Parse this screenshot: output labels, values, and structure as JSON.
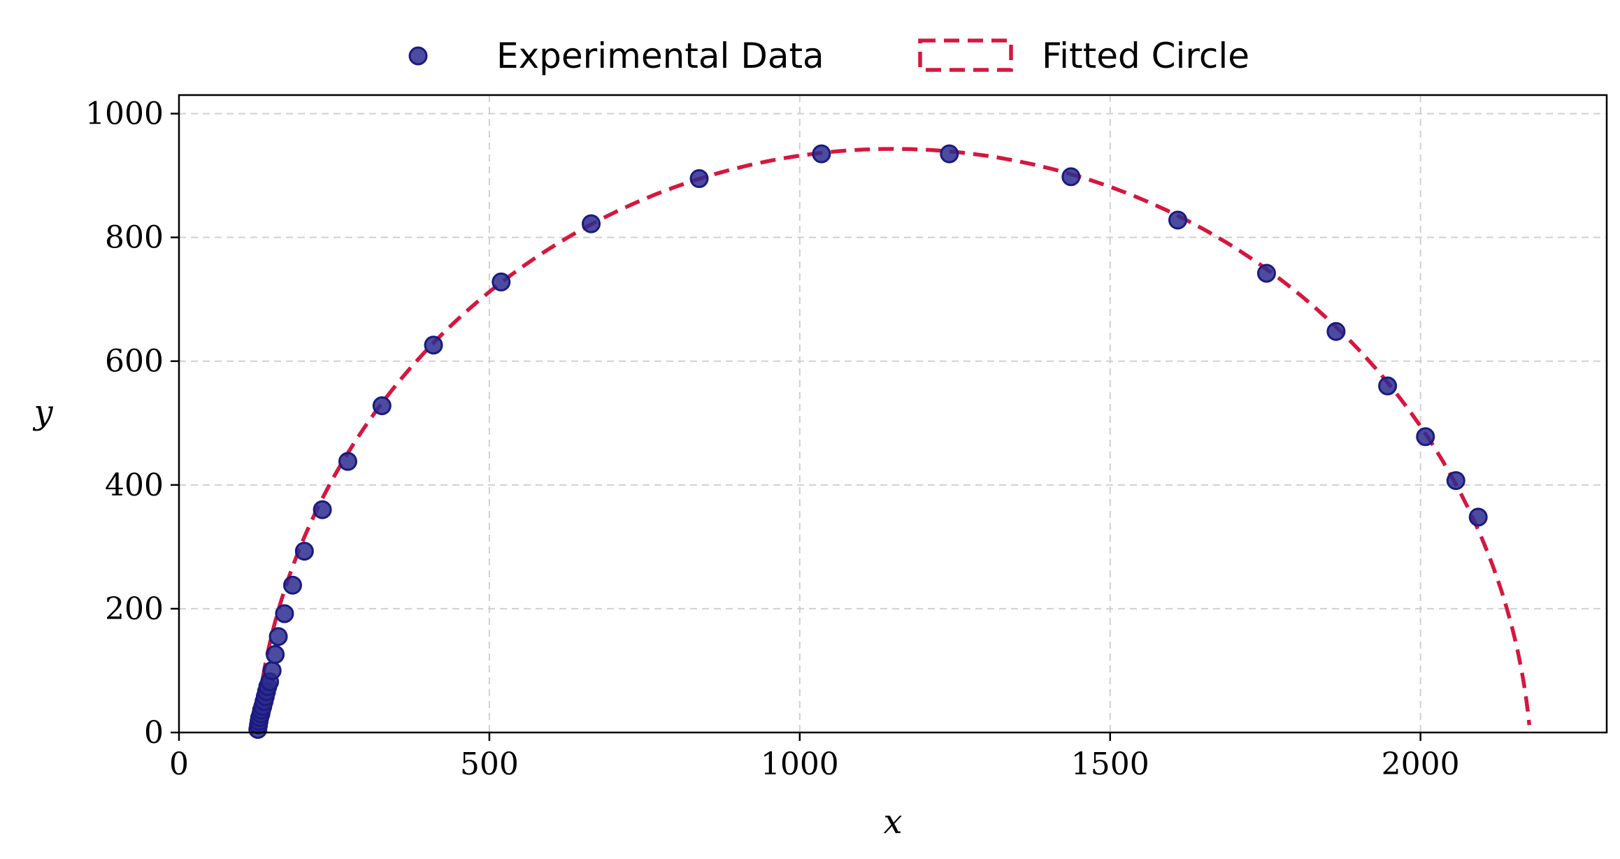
{
  "chart_data": {
    "type": "scatter",
    "xlabel": "x",
    "ylabel": "y",
    "xlim": [
      0,
      2300
    ],
    "ylim": [
      0,
      1030
    ],
    "xticks": [
      0,
      500,
      1000,
      1500,
      2000
    ],
    "yticks": [
      0,
      200,
      400,
      600,
      800,
      1000
    ],
    "grid": true,
    "legend_position": "top-center",
    "series": [
      {
        "name": "Experimental Data",
        "kind": "scatter",
        "color": "#2b2b8f",
        "edge_color": "#1a1a80",
        "points": [
          [
            127,
            5
          ],
          [
            128,
            12
          ],
          [
            129,
            18
          ],
          [
            130,
            24
          ],
          [
            132,
            30
          ],
          [
            133,
            36
          ],
          [
            135,
            42
          ],
          [
            137,
            50
          ],
          [
            139,
            58
          ],
          [
            141,
            66
          ],
          [
            143,
            74
          ],
          [
            146,
            82
          ],
          [
            150,
            100
          ],
          [
            155,
            126
          ],
          [
            160,
            155
          ],
          [
            170,
            192
          ],
          [
            183,
            238
          ],
          [
            202,
            293
          ],
          [
            231,
            360
          ],
          [
            272,
            438
          ],
          [
            327,
            528
          ],
          [
            410,
            626
          ],
          [
            519,
            728
          ],
          [
            664,
            822
          ],
          [
            838,
            895
          ],
          [
            1035,
            935
          ],
          [
            1241,
            935
          ],
          [
            1437,
            898
          ],
          [
            1609,
            828
          ],
          [
            1752,
            742
          ],
          [
            1864,
            648
          ],
          [
            1947,
            560
          ],
          [
            2008,
            478
          ],
          [
            2057,
            407
          ],
          [
            2093,
            348
          ]
        ]
      },
      {
        "name": "Fitted Circle",
        "kind": "dashed-line",
        "color": "#d7163e",
        "circle": {
          "cx": 1150,
          "cy": -87,
          "r": 1030
        }
      }
    ]
  }
}
